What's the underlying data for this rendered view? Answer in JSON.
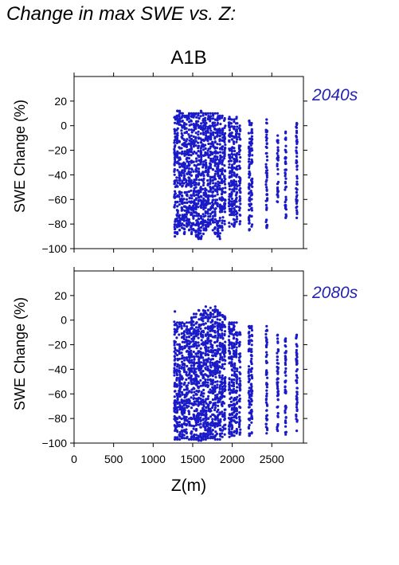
{
  "page": {
    "title": "Change in max SWE vs. Z:",
    "scenario": "A1B",
    "xlabel": "Z(m)"
  },
  "colors": {
    "points": "#1a1ac8",
    "period_label": "#2424b4",
    "axes": "#000000"
  },
  "chart_data": [
    {
      "type": "scatter",
      "period": "2040s",
      "ylabel": "SWE Change (%)",
      "xlim": [
        0,
        2900
      ],
      "ylim": [
        -100,
        40
      ],
      "xticks": [
        0,
        500,
        1000,
        1500,
        2000,
        2500
      ],
      "yticks": [
        20,
        0,
        -20,
        -40,
        -60,
        -80,
        -100
      ],
      "grid": false,
      "elevation_columns": [
        {
          "x": 1275,
          "ymin": -90,
          "ymax": 7
        },
        {
          "x": 1305,
          "ymin": -88,
          "ymax": 12
        },
        {
          "x": 1335,
          "ymin": -85,
          "ymax": 12
        },
        {
          "x": 1365,
          "ymin": -83,
          "ymax": 10
        },
        {
          "x": 1395,
          "ymin": -88,
          "ymax": 8
        },
        {
          "x": 1425,
          "ymin": -82,
          "ymax": 8
        },
        {
          "x": 1455,
          "ymin": -85,
          "ymax": 10
        },
        {
          "x": 1485,
          "ymin": -88,
          "ymax": 10
        },
        {
          "x": 1515,
          "ymin": -85,
          "ymax": 10
        },
        {
          "x": 1545,
          "ymin": -90,
          "ymax": 10
        },
        {
          "x": 1575,
          "ymin": -92,
          "ymax": 10
        },
        {
          "x": 1605,
          "ymin": -92,
          "ymax": 12
        },
        {
          "x": 1635,
          "ymin": -88,
          "ymax": 10
        },
        {
          "x": 1665,
          "ymin": -85,
          "ymax": 10
        },
        {
          "x": 1695,
          "ymin": -82,
          "ymax": 10
        },
        {
          "x": 1725,
          "ymin": -80,
          "ymax": 10
        },
        {
          "x": 1755,
          "ymin": -85,
          "ymax": 10
        },
        {
          "x": 1785,
          "ymin": -88,
          "ymax": 10
        },
        {
          "x": 1815,
          "ymin": -90,
          "ymax": 10
        },
        {
          "x": 1845,
          "ymin": -92,
          "ymax": 8
        },
        {
          "x": 1875,
          "ymin": -85,
          "ymax": 8
        },
        {
          "x": 1905,
          "ymin": -80,
          "ymax": 6
        },
        {
          "x": 1965,
          "ymin": -82,
          "ymax": 7
        },
        {
          "x": 1995,
          "ymin": -80,
          "ymax": 5
        },
        {
          "x": 2025,
          "ymin": -82,
          "ymax": 5
        },
        {
          "x": 2055,
          "ymin": -78,
          "ymax": 7
        },
        {
          "x": 2095,
          "ymin": -80,
          "ymax": 0
        },
        {
          "x": 2215,
          "ymin": -85,
          "ymax": 4
        },
        {
          "x": 2245,
          "ymin": -82,
          "ymax": 2
        },
        {
          "x": 2435,
          "ymin": -83,
          "ymax": 5
        },
        {
          "x": 2575,
          "ymin": -62,
          "ymax": -8
        },
        {
          "x": 2675,
          "ymin": -75,
          "ymax": -5
        },
        {
          "x": 2815,
          "ymin": -75,
          "ymax": 2
        }
      ]
    },
    {
      "type": "scatter",
      "period": "2080s",
      "ylabel": "SWE Change (%)",
      "xlim": [
        0,
        2900
      ],
      "ylim": [
        -100,
        40
      ],
      "xticks": [
        0,
        500,
        1000,
        1500,
        2000,
        2500
      ],
      "xtick_labels": [
        "0",
        "500",
        "1000",
        "1500",
        "2000",
        "2500"
      ],
      "yticks": [
        20,
        0,
        -20,
        -40,
        -60,
        -80,
        -100
      ],
      "grid": false,
      "elevation_columns": [
        {
          "x": 1275,
          "ymin": -97,
          "ymax": 7
        },
        {
          "x": 1305,
          "ymin": -97,
          "ymax": -2
        },
        {
          "x": 1335,
          "ymin": -97,
          "ymax": -2
        },
        {
          "x": 1365,
          "ymin": -96,
          "ymax": -2
        },
        {
          "x": 1395,
          "ymin": -96,
          "ymax": -3
        },
        {
          "x": 1425,
          "ymin": -96,
          "ymax": -2
        },
        {
          "x": 1455,
          "ymin": -97,
          "ymax": -2
        },
        {
          "x": 1485,
          "ymin": -97,
          "ymax": 2
        },
        {
          "x": 1515,
          "ymin": -97,
          "ymax": 5
        },
        {
          "x": 1545,
          "ymin": -97,
          "ymax": 5
        },
        {
          "x": 1575,
          "ymin": -98,
          "ymax": 8
        },
        {
          "x": 1605,
          "ymin": -98,
          "ymax": 5
        },
        {
          "x": 1635,
          "ymin": -97,
          "ymax": 8
        },
        {
          "x": 1665,
          "ymin": -97,
          "ymax": 11
        },
        {
          "x": 1695,
          "ymin": -96,
          "ymax": 8
        },
        {
          "x": 1725,
          "ymin": -96,
          "ymax": 10
        },
        {
          "x": 1755,
          "ymin": -96,
          "ymax": 8
        },
        {
          "x": 1785,
          "ymin": -97,
          "ymax": 11
        },
        {
          "x": 1815,
          "ymin": -97,
          "ymax": 8
        },
        {
          "x": 1845,
          "ymin": -97,
          "ymax": 6
        },
        {
          "x": 1875,
          "ymin": -95,
          "ymax": 4
        },
        {
          "x": 1905,
          "ymin": -93,
          "ymax": 3
        },
        {
          "x": 1965,
          "ymin": -95,
          "ymax": -2
        },
        {
          "x": 1995,
          "ymin": -94,
          "ymax": -2
        },
        {
          "x": 2025,
          "ymin": -94,
          "ymax": -2
        },
        {
          "x": 2055,
          "ymin": -92,
          "ymax": -2
        },
        {
          "x": 2095,
          "ymin": -93,
          "ymax": -10
        },
        {
          "x": 2215,
          "ymin": -94,
          "ymax": -5
        },
        {
          "x": 2245,
          "ymin": -92,
          "ymax": -5
        },
        {
          "x": 2435,
          "ymin": -92,
          "ymax": -5
        },
        {
          "x": 2575,
          "ymin": -90,
          "ymax": -12
        },
        {
          "x": 2675,
          "ymin": -93,
          "ymax": -15
        },
        {
          "x": 2815,
          "ymin": -90,
          "ymax": -12
        }
      ]
    }
  ]
}
